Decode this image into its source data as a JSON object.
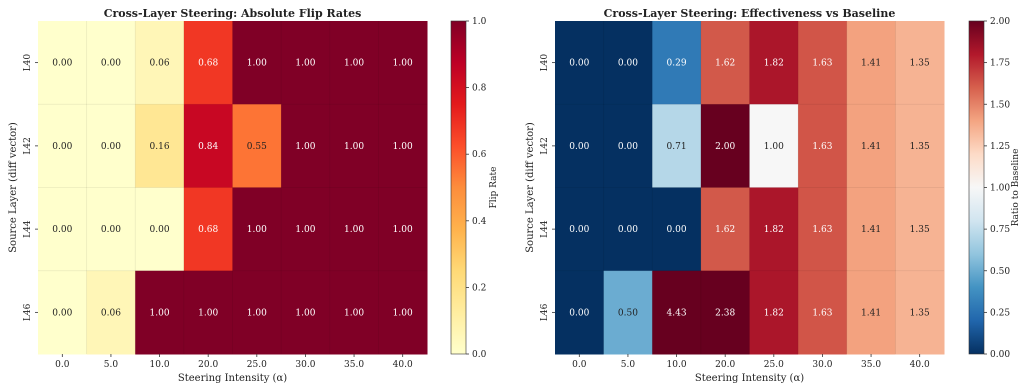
{
  "chart_data": [
    {
      "type": "heatmap",
      "title": "Cross-Layer Steering: Absolute Flip Rates",
      "xlabel": "Steering Intensity (α)",
      "ylabel": "Source Layer (diff vector)",
      "x_categories": [
        "0.0",
        "5.0",
        "10.0",
        "20.0",
        "25.0",
        "30.0",
        "35.0",
        "40.0"
      ],
      "y_categories": [
        "L40",
        "L42",
        "L44",
        "L46"
      ],
      "values": [
        [
          0.0,
          0.0,
          0.06,
          0.68,
          1.0,
          1.0,
          1.0,
          1.0
        ],
        [
          0.0,
          0.0,
          0.16,
          0.84,
          0.55,
          1.0,
          1.0,
          1.0
        ],
        [
          0.0,
          0.0,
          0.0,
          0.68,
          1.0,
          1.0,
          1.0,
          1.0
        ],
        [
          0.0,
          0.06,
          1.0,
          1.0,
          1.0,
          1.0,
          1.0,
          1.0
        ]
      ],
      "colormap": "YlOrRd",
      "vmin": 0.0,
      "vmax": 1.0,
      "colorbar": {
        "label": "Flip Rate",
        "ticks": [
          "0.0",
          "0.2",
          "0.4",
          "0.6",
          "0.8",
          "1.0"
        ]
      }
    },
    {
      "type": "heatmap",
      "title": "Cross-Layer Steering: Effectiveness vs Baseline",
      "xlabel": "Steering Intensity (α)",
      "ylabel": "Source Layer (diff vector)",
      "x_categories": [
        "0.0",
        "5.0",
        "10.0",
        "20.0",
        "25.0",
        "30.0",
        "35.0",
        "40.0"
      ],
      "y_categories": [
        "L40",
        "L42",
        "L44",
        "L46"
      ],
      "values": [
        [
          0.0,
          0.0,
          0.29,
          1.62,
          1.82,
          1.63,
          1.41,
          1.35
        ],
        [
          0.0,
          0.0,
          0.71,
          2.0,
          1.0,
          1.63,
          1.41,
          1.35
        ],
        [
          0.0,
          0.0,
          0.0,
          1.62,
          1.82,
          1.63,
          1.41,
          1.35
        ],
        [
          0.0,
          0.5,
          4.43,
          2.38,
          1.82,
          1.63,
          1.41,
          1.35
        ]
      ],
      "colormap": "RdBu_r",
      "vmin": 0.0,
      "vmax": 2.0,
      "colorbar": {
        "label": "Ratio to Baseline",
        "ticks": [
          "0.00",
          "0.25",
          "0.50",
          "0.75",
          "1.00",
          "1.25",
          "1.50",
          "1.75",
          "2.00"
        ]
      }
    }
  ]
}
